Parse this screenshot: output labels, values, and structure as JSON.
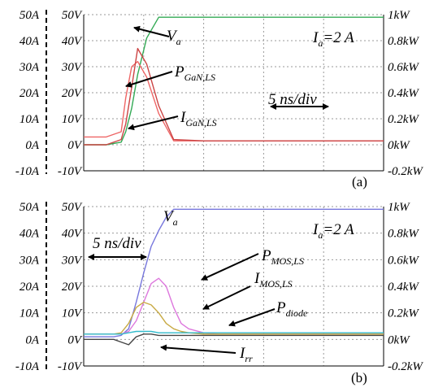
{
  "chart_data": [
    {
      "type": "line",
      "panel_label": "(a)",
      "condition": {
        "main": "I",
        "sub": "a",
        "rest": "=2 A"
      },
      "time_division": "5 ns/div",
      "current_ticks": [
        "50A",
        "40A",
        "30A",
        "20A",
        "10A",
        "0A",
        "-10A"
      ],
      "voltage_ticks": [
        "50V",
        "40V",
        "30V",
        "20V",
        "10V",
        "0V",
        "-10V"
      ],
      "power_ticks": [
        "1kW",
        "0.8kW",
        "0.6kW",
        "0.4kW",
        "0.2kW",
        "0kW",
        "-0.2kW"
      ],
      "ylim": [
        -10,
        50
      ],
      "grid": true,
      "x": [
        0,
        1.5,
        2.5,
        2.8,
        3.2,
        3.6,
        4.2,
        5.0,
        6.0,
        8.0,
        20.0
      ],
      "series": [
        {
          "name": "V",
          "sub": "a",
          "color": "#33aa55",
          "values": [
            0,
            0,
            1,
            5,
            14,
            27,
            41,
            49,
            49,
            49,
            49
          ]
        },
        {
          "name": "P",
          "sub": "GaN,LS",
          "color": "#ee6666",
          "values": [
            3,
            3,
            5,
            18,
            30,
            32,
            26,
            12,
            1.5,
            1.5,
            1.5
          ]
        },
        {
          "name": "I",
          "sub": "GaN,LS",
          "color": "#cc4444",
          "values": [
            0,
            0,
            2,
            8,
            22,
            37,
            31,
            15,
            2,
            1.5,
            1.5
          ]
        }
      ]
    },
    {
      "type": "line",
      "panel_label": "(b)",
      "condition": {
        "main": "I",
        "sub": "a",
        "rest": "=2 A"
      },
      "time_division": "5 ns/div",
      "current_ticks": [
        "50A",
        "40A",
        "30A",
        "20A",
        "10A",
        "0A",
        "-10A"
      ],
      "voltage_ticks": [
        "50V",
        "40V",
        "30V",
        "20V",
        "10V",
        "0V",
        "-10V"
      ],
      "power_ticks": [
        "1kW",
        "0.8kW",
        "0.6kW",
        "0.4kW",
        "0.2kW",
        "0kW",
        "-0.2kW"
      ],
      "ylim": [
        -10,
        50
      ],
      "grid": true,
      "x": [
        0,
        2,
        2.5,
        3,
        3.5,
        4,
        4.5,
        5,
        5.5,
        6,
        6.5,
        7,
        8,
        9,
        10,
        11,
        13,
        15,
        20
      ],
      "series": [
        {
          "name": "V",
          "sub": "a",
          "color": "#7777dd",
          "values": [
            1,
            1,
            1.5,
            4,
            14,
            25,
            35,
            41,
            46,
            49,
            49,
            49,
            49,
            49,
            49,
            49,
            49,
            49,
            49
          ]
        },
        {
          "name": "P",
          "sub": "MOS,LS",
          "color": "#dd77dd",
          "values": [
            2,
            2,
            2,
            3,
            7,
            14,
            21,
            23,
            20,
            12,
            6,
            4,
            2.5,
            2,
            2,
            2,
            2,
            2,
            2
          ]
        },
        {
          "name": "I",
          "sub": "MOS,LS",
          "color": "#c8aa44",
          "values": [
            2,
            2,
            2.5,
            6,
            12,
            14,
            13,
            10,
            6,
            4,
            3,
            2.5,
            2,
            2,
            2,
            2,
            2,
            2,
            2
          ]
        },
        {
          "name": "P",
          "sub": "diode",
          "color": "#33bbcc",
          "values": [
            2,
            2,
            2,
            2.5,
            3,
            3,
            3,
            2.5,
            2.5,
            2.5,
            2.5,
            2.5,
            2.5,
            2.5,
            2.5,
            2.5,
            2.5,
            2.5,
            2.5
          ]
        },
        {
          "name": "I",
          "sub": "rr",
          "color": "#444444",
          "values": [
            0,
            0,
            -1,
            -2,
            1,
            2,
            2,
            1.5,
            1.5,
            1.5,
            1.5,
            1.5,
            1.5,
            1.5,
            1.5,
            1.5,
            1.5,
            1.5,
            1.5
          ]
        }
      ]
    }
  ]
}
